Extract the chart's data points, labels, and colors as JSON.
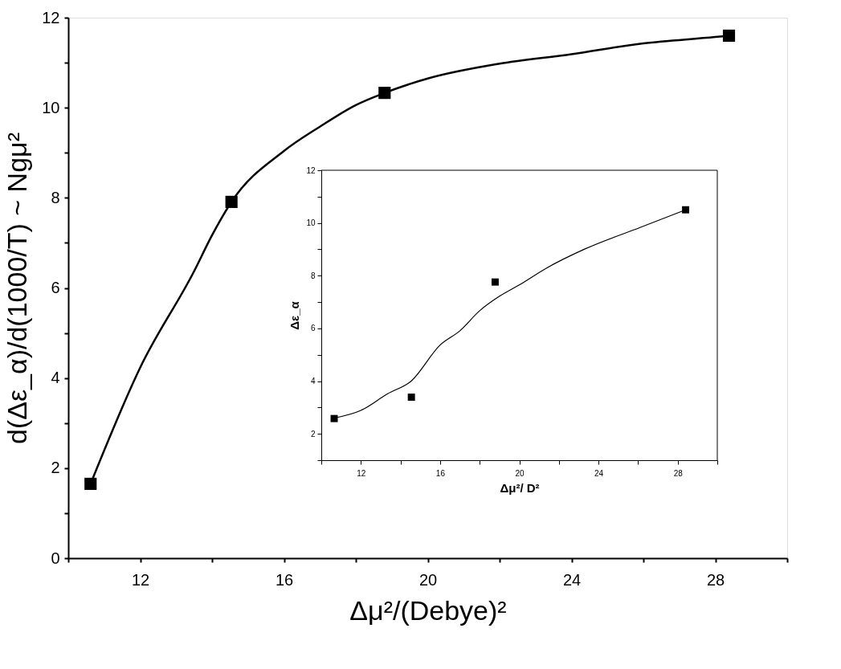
{
  "chart_data": [
    {
      "type": "scatter",
      "xlabel": "Δμ²/(Debye)²",
      "ylabel": "d(Δε_α)/d(1000/T) ~ Ngμ²",
      "xlim": [
        10,
        30
      ],
      "ylim": [
        0,
        12
      ],
      "xticks": [
        {
          "value": 10,
          "label": null
        },
        12,
        {
          "value": 14,
          "label": null
        },
        16,
        {
          "value": 18,
          "label": null
        },
        20,
        {
          "value": 22,
          "label": null
        },
        24,
        {
          "value": 26,
          "label": null
        },
        28,
        {
          "value": 30,
          "label": null
        }
      ],
      "yticks": [
        0,
        {
          "value": 1,
          "label": null
        },
        2,
        {
          "value": 3,
          "label": null
        },
        4,
        {
          "value": 5,
          "label": null
        },
        6,
        {
          "value": 7,
          "label": null
        },
        8,
        {
          "value": 9,
          "label": null
        },
        10,
        {
          "value": 11,
          "label": null
        },
        12
      ],
      "series": [
        {
          "type": "line",
          "color": "#000000",
          "x": [
            10.62,
            12,
            13.5,
            14,
            14.54,
            16,
            17,
            18,
            18.8,
            20,
            22,
            24,
            26,
            28,
            28.38
          ],
          "values": [
            1.65,
            4.23,
            6.37,
            7.17,
            7.91,
            9.04,
            9.58,
            10.06,
            10.33,
            10.65,
            10.98,
            11.19,
            11.43,
            11.57,
            11.6
          ]
        },
        {
          "marker": "square",
          "color": "#000000",
          "x": [
            10.62,
            14.54,
            18.8,
            28.38
          ],
          "values": [
            1.65,
            7.91,
            10.33,
            11.6
          ]
        }
      ]
    },
    {
      "type": "scatter",
      "xlabel": "Δμ²/ D²",
      "ylabel": "Δε_α",
      "xlim": [
        10,
        30
      ],
      "ylim": [
        1,
        12
      ],
      "xticks": [
        {
          "value": 10,
          "label": null
        },
        12,
        {
          "value": 14,
          "label": null
        },
        16,
        {
          "value": 18,
          "label": null
        },
        20,
        {
          "value": 22,
          "label": null
        },
        24,
        {
          "value": 26,
          "label": null
        },
        28,
        {
          "value": 30,
          "label": null
        }
      ],
      "yticks": [
        {
          "value": 1,
          "label": null
        },
        2,
        {
          "value": 3,
          "label": null
        },
        4,
        {
          "value": 5,
          "label": null
        },
        6,
        {
          "value": 7,
          "label": null
        },
        8,
        {
          "value": 9,
          "label": null
        },
        10,
        {
          "value": 11,
          "label": null
        },
        12
      ],
      "series": [
        {
          "type": "line",
          "color": "#000000",
          "x": [
            10.65,
            12,
            13.35,
            14.55,
            16,
            17,
            18,
            19,
            20,
            21.4,
            23.3,
            26.1,
            28.4
          ],
          "values": [
            2.6,
            2.89,
            3.52,
            4.01,
            5.37,
            5.91,
            6.67,
            7.22,
            7.65,
            8.3,
            9.01,
            9.83,
            10.5
          ]
        },
        {
          "marker": "square",
          "color": "#000000",
          "x": [
            10.65,
            14.55,
            18.78,
            28.4
          ],
          "values": [
            2.58,
            3.39,
            7.76,
            10.5
          ]
        }
      ]
    }
  ]
}
